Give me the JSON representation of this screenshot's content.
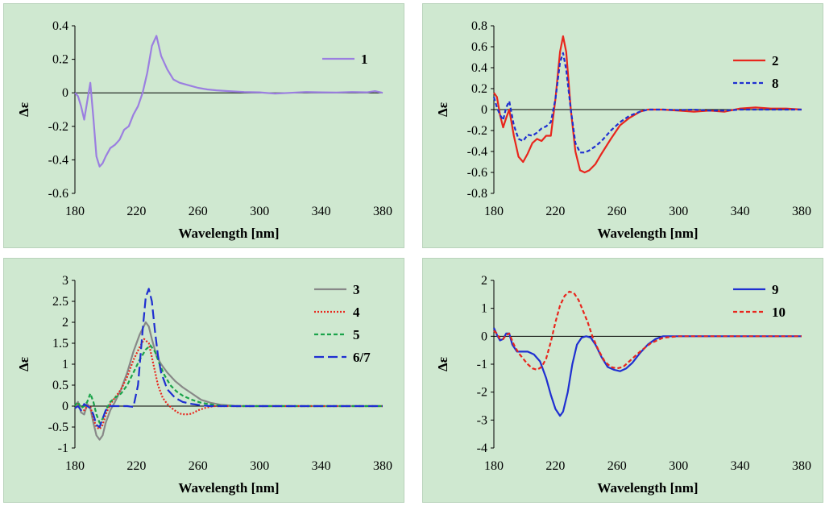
{
  "chart_data": [
    {
      "type": "line",
      "xlabel": "Wavelength [nm]",
      "ylabel": "Δε",
      "xlim": [
        180,
        380
      ],
      "ylim": [
        -0.6,
        0.4
      ],
      "xticks": [
        "180",
        "220",
        "260",
        "300",
        "340",
        "380"
      ],
      "yticks": [
        "0.4",
        "0.2",
        "0",
        "-0.2",
        "-0.4",
        "-0.6"
      ],
      "legend_position": "top-right",
      "series": [
        {
          "name": "1",
          "color": "#9b7fe0",
          "dash": "solid",
          "x": [
            180,
            182,
            184,
            186,
            188,
            190,
            192,
            194,
            196,
            198,
            200,
            203,
            206,
            209,
            212,
            215,
            218,
            221,
            224,
            227,
            230,
            233,
            236,
            240,
            244,
            248,
            252,
            256,
            260,
            266,
            272,
            280,
            290,
            300,
            310,
            320,
            330,
            340,
            350,
            360,
            370,
            375,
            380
          ],
          "y": [
            0,
            -0.02,
            -0.08,
            -0.16,
            -0.05,
            0.06,
            -0.15,
            -0.38,
            -0.44,
            -0.42,
            -0.38,
            -0.33,
            -0.31,
            -0.28,
            -0.22,
            -0.2,
            -0.13,
            -0.08,
            0,
            0.12,
            0.28,
            0.34,
            0.22,
            0.14,
            0.08,
            0.06,
            0.05,
            0.04,
            0.03,
            0.02,
            0.015,
            0.01,
            0.005,
            0.003,
            -0.005,
            0,
            0.005,
            0.003,
            0.002,
            0.005,
            0.003,
            0.01,
            0
          ]
        }
      ]
    },
    {
      "type": "line",
      "xlabel": "Wavelength [nm]",
      "ylabel": "Δε",
      "xlim": [
        180,
        380
      ],
      "ylim": [
        -0.8,
        0.8
      ],
      "xticks": [
        "180",
        "220",
        "260",
        "300",
        "340",
        "380"
      ],
      "yticks": [
        "0.8",
        "0.6",
        "0.4",
        "0.2",
        "0",
        "-0.2",
        "-0.4",
        "-0.6",
        "-0.8"
      ],
      "legend_position": "top-right",
      "series": [
        {
          "name": "2",
          "color": "#e8261d",
          "dash": "solid",
          "x": [
            180,
            182,
            184,
            186,
            188,
            190,
            193,
            196,
            199,
            202,
            205,
            208,
            211,
            214,
            217,
            220,
            223,
            225,
            227,
            230,
            233,
            236,
            239,
            242,
            246,
            250,
            256,
            262,
            268,
            275,
            280,
            290,
            300,
            310,
            320,
            330,
            340,
            350,
            360,
            370,
            380
          ],
          "y": [
            0.16,
            0.12,
            -0.05,
            -0.17,
            -0.08,
            0,
            -0.25,
            -0.45,
            -0.5,
            -0.42,
            -0.32,
            -0.28,
            -0.3,
            -0.25,
            -0.25,
            0.1,
            0.55,
            0.7,
            0.55,
            0,
            -0.4,
            -0.58,
            -0.6,
            -0.58,
            -0.52,
            -0.42,
            -0.28,
            -0.15,
            -0.08,
            -0.02,
            0,
            0,
            -0.01,
            -0.02,
            -0.01,
            -0.02,
            0.01,
            0.02,
            0.01,
            0.01,
            0
          ]
        },
        {
          "name": "8",
          "color": "#1f2fd1",
          "dash": "dash",
          "x": [
            180,
            182,
            184,
            186,
            188,
            190,
            193,
            196,
            199,
            202,
            205,
            208,
            211,
            214,
            217,
            220,
            223,
            225,
            227,
            230,
            233,
            236,
            239,
            242,
            246,
            250,
            256,
            262,
            268,
            275,
            280,
            290,
            300,
            310,
            320,
            330,
            340,
            350,
            360,
            370,
            380
          ],
          "y": [
            0.12,
            0.02,
            -0.05,
            -0.1,
            0.02,
            0.08,
            -0.15,
            -0.28,
            -0.3,
            -0.24,
            -0.25,
            -0.22,
            -0.18,
            -0.16,
            -0.12,
            0.1,
            0.45,
            0.54,
            0.38,
            0,
            -0.32,
            -0.41,
            -0.41,
            -0.39,
            -0.35,
            -0.3,
            -0.2,
            -0.12,
            -0.06,
            -0.02,
            0,
            0,
            -0.005,
            0,
            -0.01,
            -0.01,
            0,
            0,
            0,
            0,
            0
          ]
        }
      ]
    },
    {
      "type": "line",
      "xlabel": "Wavelength [nm]",
      "ylabel": "Δε",
      "xlim": [
        180,
        380
      ],
      "ylim": [
        -1,
        3
      ],
      "xticks": [
        "180",
        "220",
        "260",
        "300",
        "340",
        "380"
      ],
      "yticks": [
        "3",
        "2.5",
        "2",
        "1.5",
        "1",
        "0.5",
        "0",
        "-0.5",
        "-1"
      ],
      "legend_position": "top-right",
      "series": [
        {
          "name": "3",
          "color": "#888888",
          "dash": "solid",
          "x": [
            180,
            182,
            184,
            186,
            188,
            190,
            192,
            194,
            196,
            198,
            200,
            203,
            206,
            210,
            214,
            218,
            222,
            226,
            228,
            230,
            233,
            236,
            240,
            245,
            250,
            256,
            262,
            268,
            275,
            285,
            300,
            320,
            340,
            360,
            380
          ],
          "y": [
            0,
            0.1,
            -0.15,
            -0.2,
            0.05,
            -0.05,
            -0.4,
            -0.7,
            -0.8,
            -0.7,
            -0.4,
            -0.1,
            0.1,
            0.4,
            0.8,
            1.3,
            1.7,
            2.0,
            1.9,
            1.6,
            1.2,
            1.0,
            0.8,
            0.6,
            0.45,
            0.3,
            0.15,
            0.08,
            0.03,
            0,
            0,
            0,
            0,
            0,
            0
          ]
        },
        {
          "name": "4",
          "color": "#e8261d",
          "dash": "dot",
          "x": [
            180,
            182,
            184,
            186,
            188,
            190,
            192,
            194,
            196,
            198,
            200,
            203,
            206,
            210,
            214,
            218,
            222,
            225,
            228,
            231,
            234,
            237,
            240,
            244,
            248,
            252,
            256,
            260,
            265,
            270,
            275,
            285,
            300,
            320,
            340,
            360,
            380
          ],
          "y": [
            0,
            0.05,
            -0.1,
            -0.1,
            0,
            0,
            -0.3,
            -0.5,
            -0.55,
            -0.45,
            -0.2,
            0.05,
            0.2,
            0.4,
            0.7,
            1.1,
            1.4,
            1.6,
            1.5,
            1.0,
            0.5,
            0.2,
            0.05,
            -0.08,
            -0.18,
            -0.2,
            -0.18,
            -0.1,
            -0.04,
            0,
            0,
            0,
            0,
            0,
            0,
            0,
            0
          ]
        },
        {
          "name": "5",
          "color": "#1aa34a",
          "dash": "dash",
          "x": [
            180,
            182,
            184,
            186,
            188,
            190,
            192,
            194,
            196,
            198,
            200,
            203,
            206,
            210,
            214,
            218,
            222,
            226,
            229,
            232,
            235,
            238,
            242,
            246,
            250,
            256,
            262,
            268,
            275,
            285,
            300,
            320,
            340,
            360,
            380
          ],
          "y": [
            0,
            0.1,
            -0.05,
            0,
            0.1,
            0.3,
            0.1,
            -0.2,
            -0.4,
            -0.3,
            -0.1,
            0.1,
            0.2,
            0.3,
            0.5,
            0.8,
            1.1,
            1.35,
            1.45,
            1.3,
            1.0,
            0.75,
            0.5,
            0.35,
            0.25,
            0.15,
            0.08,
            0.04,
            0.01,
            0,
            0,
            0,
            0,
            0,
            0
          ]
        },
        {
          "name": "6/7",
          "color": "#1f2fd1",
          "dash": "longdash",
          "x": [
            180,
            182,
            184,
            186,
            188,
            190,
            192,
            194,
            196,
            198,
            200,
            203,
            206,
            210,
            214,
            218,
            221,
            224,
            226,
            228,
            230,
            232,
            234,
            236,
            240,
            245,
            250,
            256,
            262,
            268,
            275,
            285,
            300,
            320,
            340,
            360,
            380
          ],
          "y": [
            -0.05,
            0,
            -0.1,
            0.05,
            0,
            -0.05,
            -0.2,
            -0.45,
            -0.5,
            -0.3,
            -0.1,
            0,
            0,
            0,
            0,
            -0.02,
            0.5,
            1.8,
            2.6,
            2.8,
            2.5,
            1.8,
            1.2,
            0.8,
            0.4,
            0.2,
            0.1,
            0.05,
            0.02,
            0,
            0,
            0,
            0,
            0,
            0,
            0,
            0
          ]
        }
      ]
    },
    {
      "type": "line",
      "xlabel": "Wavelength [nm]",
      "ylabel": "Δε",
      "xlim": [
        180,
        380
      ],
      "ylim": [
        -4,
        2
      ],
      "xticks": [
        "180",
        "220",
        "260",
        "300",
        "340",
        "380"
      ],
      "yticks": [
        "2",
        "1",
        "0",
        "-1",
        "-2",
        "-3",
        "-4"
      ],
      "legend_position": "top-right",
      "series": [
        {
          "name": "9",
          "color": "#1f2fd1",
          "dash": "solid",
          "x": [
            180,
            182,
            184,
            186,
            188,
            190,
            192,
            195,
            198,
            202,
            206,
            210,
            214,
            217,
            220,
            223,
            225,
            228,
            231,
            234,
            237,
            240,
            243,
            246,
            250,
            254,
            258,
            262,
            266,
            270,
            275,
            280,
            285,
            290,
            300,
            320,
            340,
            360,
            380
          ],
          "y": [
            0.3,
            0.05,
            -0.15,
            -0.1,
            0.1,
            0.1,
            -0.3,
            -0.55,
            -0.55,
            -0.55,
            -0.65,
            -0.9,
            -1.5,
            -2.1,
            -2.6,
            -2.85,
            -2.7,
            -2.0,
            -1.0,
            -0.3,
            -0.05,
            0,
            -0.05,
            -0.3,
            -0.75,
            -1.1,
            -1.2,
            -1.25,
            -1.15,
            -0.95,
            -0.6,
            -0.3,
            -0.1,
            0,
            0,
            0,
            0,
            0,
            0
          ]
        },
        {
          "name": "10",
          "color": "#e8261d",
          "dash": "dash",
          "x": [
            180,
            182,
            184,
            186,
            188,
            190,
            193,
            196,
            199,
            202,
            205,
            208,
            211,
            214,
            217,
            220,
            223,
            226,
            229,
            232,
            235,
            238,
            241,
            244,
            248,
            252,
            256,
            260,
            264,
            268,
            272,
            276,
            282,
            290,
            300,
            320,
            340,
            360,
            380
          ],
          "y": [
            0.2,
            0.1,
            -0.1,
            -0.1,
            0.05,
            0.1,
            -0.3,
            -0.6,
            -0.8,
            -1.0,
            -1.15,
            -1.2,
            -1.1,
            -0.8,
            -0.2,
            0.5,
            1.1,
            1.45,
            1.6,
            1.55,
            1.3,
            0.9,
            0.5,
            0,
            -0.5,
            -0.9,
            -1.1,
            -1.15,
            -1.1,
            -0.9,
            -0.7,
            -0.5,
            -0.25,
            -0.05,
            0,
            0,
            0,
            0,
            0
          ]
        }
      ]
    }
  ]
}
